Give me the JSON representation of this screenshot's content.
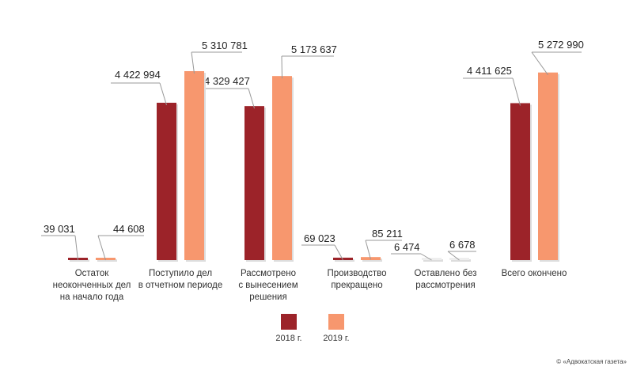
{
  "chart_data": {
    "type": "bar",
    "title": "",
    "xlabel": "",
    "ylabel": "",
    "ylim": [
      0,
      5500000
    ],
    "grid": false,
    "legend_position": "bottom-center",
    "categories": [
      [
        "Остаток",
        "неоконченных дел",
        "на начало года"
      ],
      [
        "Поступило дел",
        "в отчетном периоде"
      ],
      [
        "Рассмотрено",
        "с вынесением",
        "решения"
      ],
      [
        "Производство",
        "прекращено"
      ],
      [
        "Оставлено без",
        "рассмотрения"
      ],
      [
        "Всего окончено"
      ]
    ],
    "series": [
      {
        "name": "2018 г.",
        "color": "#9c2329",
        "values": [
          39031,
          4422994,
          4329427,
          69023,
          6474,
          4411625
        ],
        "labels": [
          "39 031",
          "4 422 994",
          "4 329 427",
          "69 023",
          "6 474",
          "4 411 625"
        ]
      },
      {
        "name": "2019 г.",
        "color": "#f7976e",
        "values": [
          44608,
          5310781,
          5173637,
          85211,
          6678,
          5272990
        ],
        "labels": [
          "44 608",
          "5 310 781",
          "5 173 637",
          "85 211",
          "6 678",
          "5 272 990"
        ]
      }
    ]
  },
  "copyright": "© «Адвокатская газета»"
}
